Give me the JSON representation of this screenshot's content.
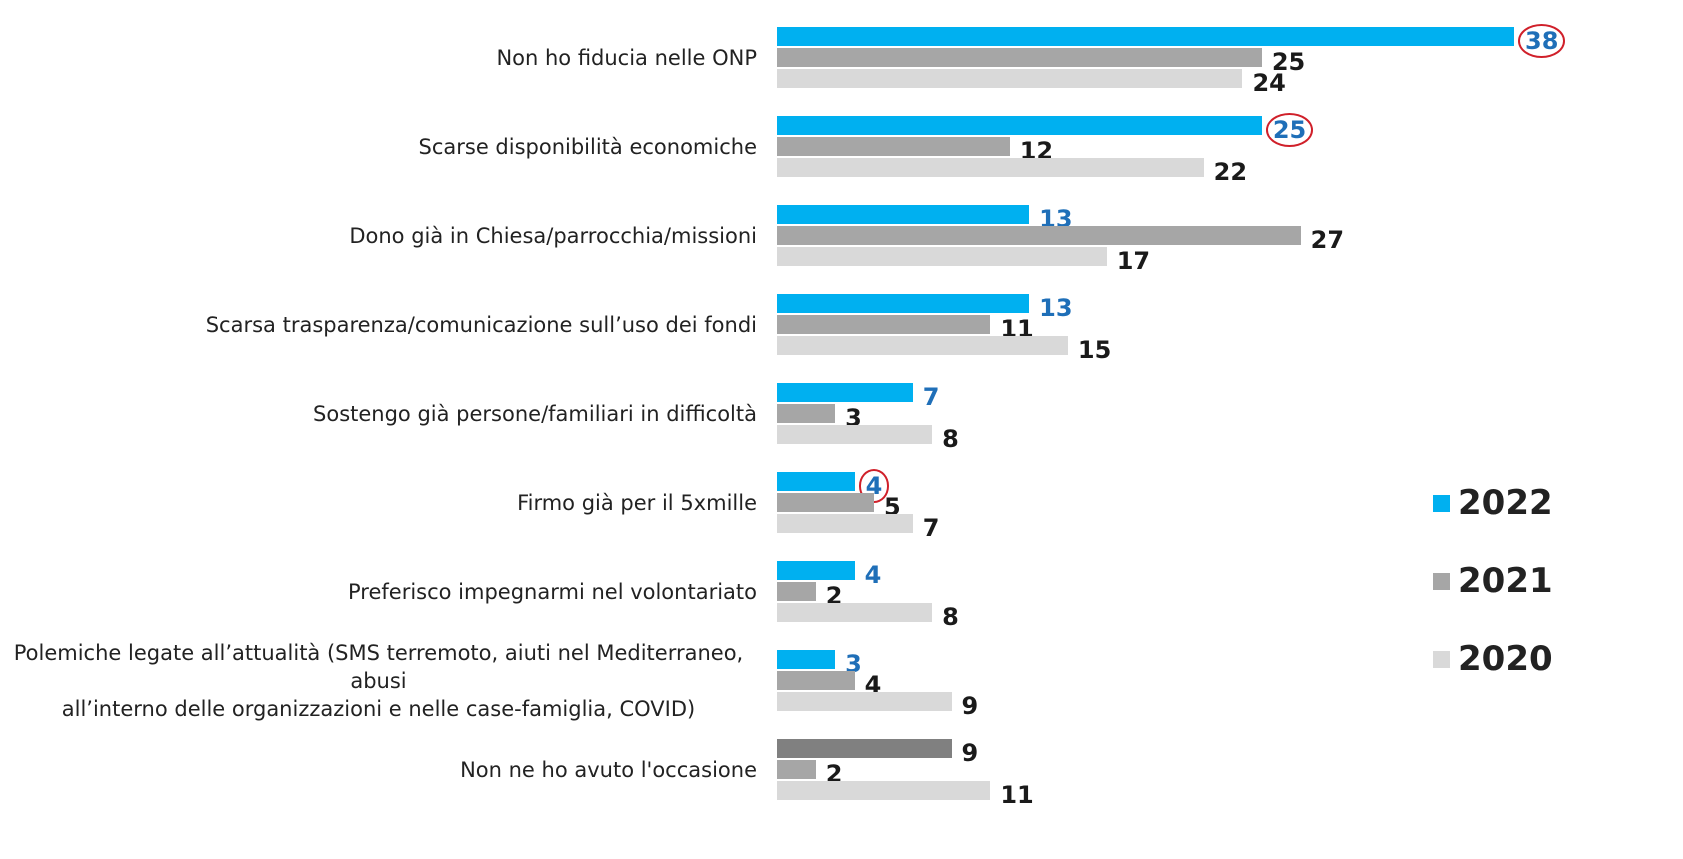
{
  "chart_data": {
    "type": "hbar",
    "categories": [
      "Non ho fiducia nelle ONP",
      "Scarse disponibilità economiche",
      "Dono già in Chiesa/parrocchia/missioni",
      "Scarsa trasparenza/comunicazione sull’uso dei fondi",
      "Sostengo già persone/familiari in difficoltà",
      "Firmo già per il 5xmille",
      "Preferisco impegnarmi nel volontariato",
      "Polemiche legate all’attualità (SMS terremoto, aiuti nel Mediterraneo, abusi\nall’interno delle organizzazioni e nelle case-famiglia, COVID)",
      "Non ne ho avuto l'occasione"
    ],
    "series": [
      {
        "name": "2022",
        "color": "#00b0f0",
        "label_color": "#1f6fb8",
        "colors": [
          "#00b0f0",
          "#00b0f0",
          "#00b0f0",
          "#00b0f0",
          "#00b0f0",
          "#00b0f0",
          "#00b0f0",
          "#00b0f0",
          "#808080"
        ],
        "circled": [
          true,
          true,
          false,
          false,
          false,
          true,
          false,
          false,
          false
        ],
        "values": [
          38,
          25,
          13,
          13,
          7,
          4,
          4,
          3,
          9
        ]
      },
      {
        "name": "2021",
        "color": "#a6a6a6",
        "label_color": "#1a1a1a",
        "values": [
          25,
          12,
          27,
          11,
          3,
          5,
          2,
          4,
          2
        ]
      },
      {
        "name": "2020",
        "color": "#d9d9d9",
        "label_color": "#1a1a1a",
        "values": [
          24,
          22,
          17,
          15,
          8,
          7,
          8,
          9,
          11
        ]
      }
    ],
    "legend": "right"
  }
}
